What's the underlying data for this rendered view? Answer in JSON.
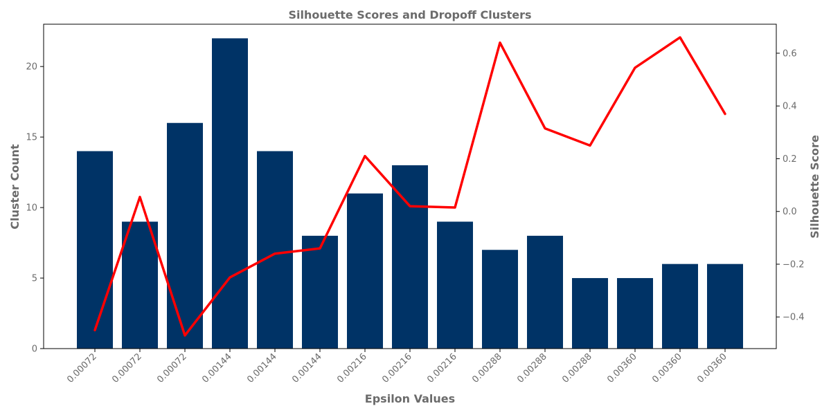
{
  "chart_data": {
    "type": "bar",
    "title": "Silhouette Scores and Dropoff Clusters",
    "xlabel": "Epsilon Values",
    "ylabel": "Cluster Count",
    "y2label": "Silhouette Score",
    "categories": [
      "0.00072",
      "0.00072",
      "0.00072",
      "0.00144",
      "0.00144",
      "0.00144",
      "0.00216",
      "0.00216",
      "0.00216",
      "0.00288",
      "0.00288",
      "0.00288",
      "0.00360",
      "0.00360",
      "0.00360"
    ],
    "series": [
      {
        "axis": "left",
        "kind": "bar",
        "color": "#003366",
        "values": [
          14,
          9,
          16,
          22,
          14,
          8,
          11,
          13,
          9,
          7,
          8,
          5,
          5,
          6,
          6
        ]
      },
      {
        "axis": "right",
        "kind": "line",
        "color": "#ff0000",
        "values": [
          -0.45,
          0.055,
          -0.47,
          -0.25,
          -0.16,
          -0.14,
          0.21,
          0.02,
          0.015,
          0.64,
          0.315,
          0.25,
          0.545,
          0.66,
          0.37
        ]
      }
    ],
    "ylim": [
      0,
      23
    ],
    "y2lim": [
      -0.52,
      0.71
    ],
    "yticks": [
      "0",
      "5",
      "10",
      "15",
      "20"
    ],
    "y2ticks": [
      "−0.4",
      "−0.2",
      "0.0",
      "0.2",
      "0.4",
      "0.6"
    ],
    "grid": false,
    "legend": "none"
  }
}
